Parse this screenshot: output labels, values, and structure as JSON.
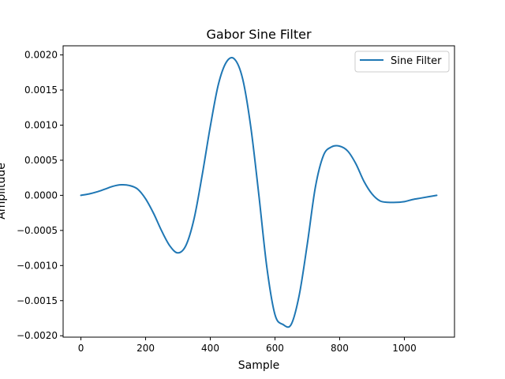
{
  "chart_data": {
    "type": "line",
    "title": "Gabor Sine Filter",
    "xlabel": "Sample",
    "ylabel": "Amplitude",
    "xlim": [
      -55,
      1155
    ],
    "ylim": [
      -0.00202,
      0.00213
    ],
    "x_ticks": [
      0,
      200,
      400,
      600,
      800,
      1000
    ],
    "x_tick_labels": [
      "0",
      "200",
      "400",
      "600",
      "800",
      "1000"
    ],
    "y_ticks": [
      -0.002,
      -0.0015,
      -0.001,
      -0.0005,
      0.0,
      0.0005,
      0.001,
      0.0015,
      0.002
    ],
    "y_tick_labels": [
      "−0.0020",
      "−0.0015",
      "−0.0010",
      "−0.0005",
      "0.0000",
      "0.0005",
      "0.0010",
      "0.0015",
      "0.0020"
    ],
    "grid": false,
    "legend_position": "top-right",
    "series": [
      {
        "name": "Sine Filter",
        "color": "#1f77b4",
        "x": [
          0,
          25,
          50,
          75,
          100,
          125,
          150,
          175,
          200,
          225,
          250,
          275,
          300,
          325,
          350,
          375,
          400,
          425,
          450,
          475,
          500,
          525,
          550,
          575,
          600,
          625,
          650,
          675,
          700,
          725,
          750,
          775,
          800,
          825,
          850,
          875,
          900,
          925,
          950,
          975,
          1000,
          1025,
          1050,
          1075,
          1100
        ],
        "y": [
          0.0,
          2e-05,
          5e-05,
          9e-05,
          0.00013,
          0.00015,
          0.00014,
          9e-05,
          -5e-05,
          -0.00026,
          -0.00051,
          -0.00072,
          -0.00082,
          -0.00071,
          -0.00033,
          0.00029,
          0.00098,
          0.00158,
          0.0019,
          0.00194,
          0.00166,
          0.00098,
          1e-05,
          -0.00103,
          -0.0017,
          -0.00184,
          -0.00184,
          -0.00142,
          -0.00069,
          0.00012,
          0.00057,
          0.00069,
          0.0007,
          0.00063,
          0.00045,
          0.0002,
          2e-05,
          -8e-05,
          -0.0001,
          -0.0001,
          -9e-05,
          -6e-05,
          -4e-05,
          -2e-05,
          0.0
        ]
      }
    ]
  }
}
